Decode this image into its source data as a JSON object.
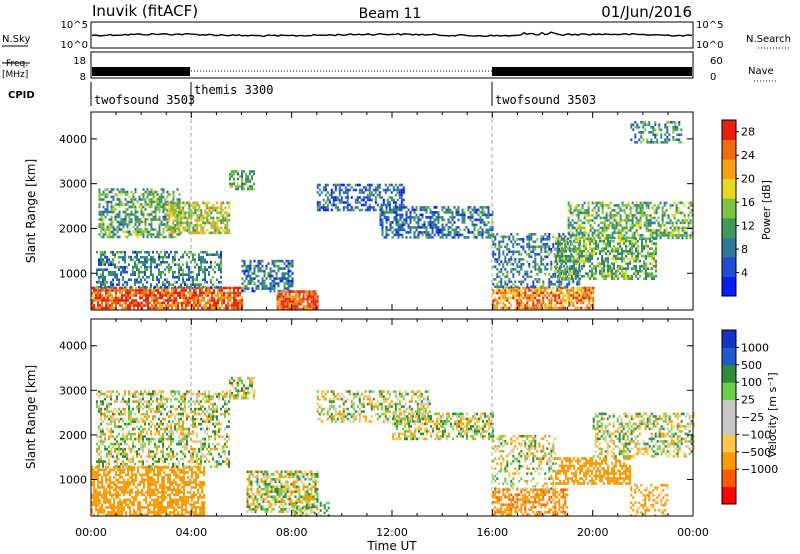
{
  "header": {
    "station": "Inuvik (fitACF)",
    "beam": "Beam 11",
    "date": "01/Jun/2016"
  },
  "colors": {
    "power_scale": [
      "#0a1ef0",
      "#1f4fd0",
      "#2f7a9a",
      "#3f9a5a",
      "#7cc43c",
      "#e8d820",
      "#f5a010",
      "#f06a10",
      "#e82010"
    ],
    "velocity_scale": [
      "#ff0000",
      "#ff5a00",
      "#ff9a00",
      "#ffc84a",
      "#c8c8c8",
      "#c8c8c8",
      "#6ad04a",
      "#2e8c3a",
      "#1e5ac8",
      "#1432c8"
    ],
    "gray_dash": "#aaaaaa"
  },
  "panels": {
    "nsky": {
      "left_label": "N.Sky",
      "right_label": "N.Search",
      "left_ticks": [
        "10^5",
        "10^0"
      ],
      "right_ticks": [
        "10^5",
        "10^0"
      ]
    },
    "freq": {
      "left_label_1": "Freq.",
      "left_label_2": "[MHz]",
      "right_label": "Nave",
      "left_ticks": [
        "18",
        "8"
      ],
      "right_ticks": [
        "60",
        "0"
      ]
    },
    "cpid": {
      "label": "CPID",
      "segments": [
        "twofsound 3503",
        "themis 3300",
        "twofsound 3503"
      ]
    }
  },
  "chart_data": [
    {
      "type": "heatmap",
      "id": "power",
      "title": "",
      "xlabel": "Time UT",
      "ylabel": "Slant Range [km]",
      "x_ticks": [
        "00:00",
        "04:00",
        "08:00",
        "12:00",
        "16:00",
        "20:00",
        "00:00"
      ],
      "y_ticks": [
        "1000",
        "2000",
        "3000",
        "4000"
      ],
      "xlim_hours": [
        0,
        24
      ],
      "ylim_km": [
        180,
        4600
      ],
      "colorbar": {
        "label": "Power [dB]",
        "ticks": [
          "4",
          "8",
          "12",
          "16",
          "20",
          "24",
          "28"
        ],
        "range": [
          0,
          30
        ]
      },
      "regions": [
        {
          "t": [
            0.0,
            6.0
          ],
          "r": [
            200,
            700
          ],
          "v": 26,
          "d": 0.8
        },
        {
          "t": [
            0.2,
            5.2
          ],
          "r": [
            700,
            1500
          ],
          "v": 9,
          "d": 0.5
        },
        {
          "t": [
            0.3,
            3.5
          ],
          "r": [
            1800,
            2900
          ],
          "v": 12,
          "d": 0.55
        },
        {
          "t": [
            3.0,
            5.5
          ],
          "r": [
            1900,
            2600
          ],
          "v": 17,
          "d": 0.65
        },
        {
          "t": [
            5.5,
            6.5
          ],
          "r": [
            2900,
            3300
          ],
          "v": 12,
          "d": 0.6
        },
        {
          "t": [
            6.0,
            8.0
          ],
          "r": [
            600,
            1300
          ],
          "v": 8,
          "d": 0.55
        },
        {
          "t": [
            7.4,
            9.0
          ],
          "r": [
            180,
            620
          ],
          "v": 26,
          "d": 0.9
        },
        {
          "t": [
            9.0,
            12.5
          ],
          "r": [
            2400,
            3000
          ],
          "v": 7,
          "d": 0.5
        },
        {
          "t": [
            11.5,
            16.0
          ],
          "r": [
            1800,
            2500
          ],
          "v": 8,
          "d": 0.55
        },
        {
          "t": [
            16.0,
            20.0
          ],
          "r": [
            200,
            700
          ],
          "v": 23,
          "d": 0.75
        },
        {
          "t": [
            16.0,
            19.5
          ],
          "r": [
            700,
            1900
          ],
          "v": 9,
          "d": 0.45
        },
        {
          "t": [
            18.5,
            22.5
          ],
          "r": [
            900,
            1800
          ],
          "v": 13,
          "d": 0.6
        },
        {
          "t": [
            19.0,
            24.0
          ],
          "r": [
            1800,
            2600
          ],
          "v": 13,
          "d": 0.55
        },
        {
          "t": [
            21.5,
            23.5
          ],
          "r": [
            3900,
            4400
          ],
          "v": 10,
          "d": 0.45
        }
      ]
    },
    {
      "type": "heatmap",
      "id": "velocity",
      "title": "",
      "xlabel": "Time UT",
      "ylabel": "Slant Range [km]",
      "x_ticks": [
        "00:00",
        "04:00",
        "08:00",
        "12:00",
        "16:00",
        "20:00",
        "00:00"
      ],
      "y_ticks": [
        "1000",
        "2000",
        "3000",
        "4000"
      ],
      "xlim_hours": [
        0,
        24
      ],
      "ylim_km": [
        180,
        4600
      ],
      "colorbar": {
        "label": "Velocity [m s⁻¹]",
        "ticks": [
          "1000",
          "500",
          "100",
          "25",
          "−25",
          "−100",
          "−500",
          "−1000"
        ],
        "range": [
          -1200,
          1200
        ]
      },
      "regions": [
        {
          "t": [
            0.0,
            4.5
          ],
          "r": [
            200,
            1300
          ],
          "v": -300,
          "d": 0.65
        },
        {
          "t": [
            0.2,
            5.5
          ],
          "r": [
            1300,
            3000
          ],
          "v": 10,
          "d": 0.45
        },
        {
          "t": [
            5.5,
            6.5
          ],
          "r": [
            2800,
            3300
          ],
          "v": 5,
          "d": 0.6
        },
        {
          "t": [
            6.2,
            9.0
          ],
          "r": [
            300,
            1200
          ],
          "v": 5,
          "d": 0.6
        },
        {
          "t": [
            8.0,
            9.5
          ],
          "r": [
            180,
            500
          ],
          "v": 60,
          "d": 0.5
        },
        {
          "t": [
            9.0,
            13.5
          ],
          "r": [
            2300,
            3000
          ],
          "v": 5,
          "d": 0.45
        },
        {
          "t": [
            12.0,
            16.0
          ],
          "r": [
            1900,
            2500
          ],
          "v": 5,
          "d": 0.55
        },
        {
          "t": [
            16.0,
            19.0
          ],
          "r": [
            200,
            800
          ],
          "v": -400,
          "d": 0.6
        },
        {
          "t": [
            16.0,
            18.5
          ],
          "r": [
            800,
            2000
          ],
          "v": 5,
          "d": 0.35
        },
        {
          "t": [
            18.5,
            21.5
          ],
          "r": [
            900,
            1500
          ],
          "v": -300,
          "d": 0.6
        },
        {
          "t": [
            20.0,
            24.0
          ],
          "r": [
            1500,
            2500
          ],
          "v": 5,
          "d": 0.45
        },
        {
          "t": [
            21.5,
            23.0
          ],
          "r": [
            200,
            900
          ],
          "v": -150,
          "d": 0.4
        }
      ]
    }
  ]
}
